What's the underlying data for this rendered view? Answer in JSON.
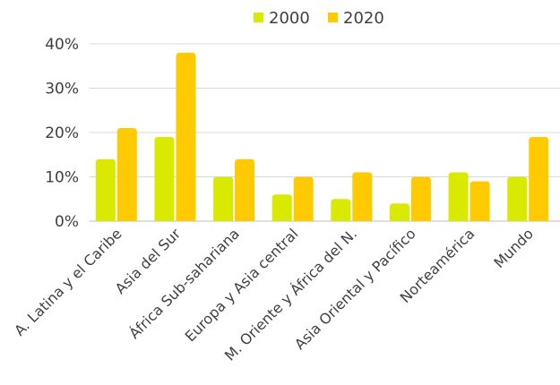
{
  "chart_data": {
    "type": "bar",
    "title": "",
    "xlabel": "",
    "ylabel": "",
    "ylim": [
      0,
      40
    ],
    "yticks": [
      "0%",
      "10%",
      "20%",
      "30%",
      "40%"
    ],
    "ytick_values": [
      0,
      10,
      20,
      30,
      40
    ],
    "grid": true,
    "legend_position": "top-center",
    "categories": [
      "A. Latina y el Caribe",
      "Asia del Sur",
      "África Sub-sahariana",
      "Europa y Asia central",
      "M. Oriente y África del N.",
      "Asia Oriental y Pacífico",
      "Norteamérica",
      "Mundo"
    ],
    "series": [
      {
        "name": "2000",
        "color": "#d9ea00",
        "values": [
          14,
          19,
          10,
          6,
          5,
          4,
          11,
          10
        ]
      },
      {
        "name": "2020",
        "color": "#ffca00",
        "values": [
          21,
          38,
          14,
          10,
          11,
          10,
          9,
          19
        ]
      }
    ]
  }
}
